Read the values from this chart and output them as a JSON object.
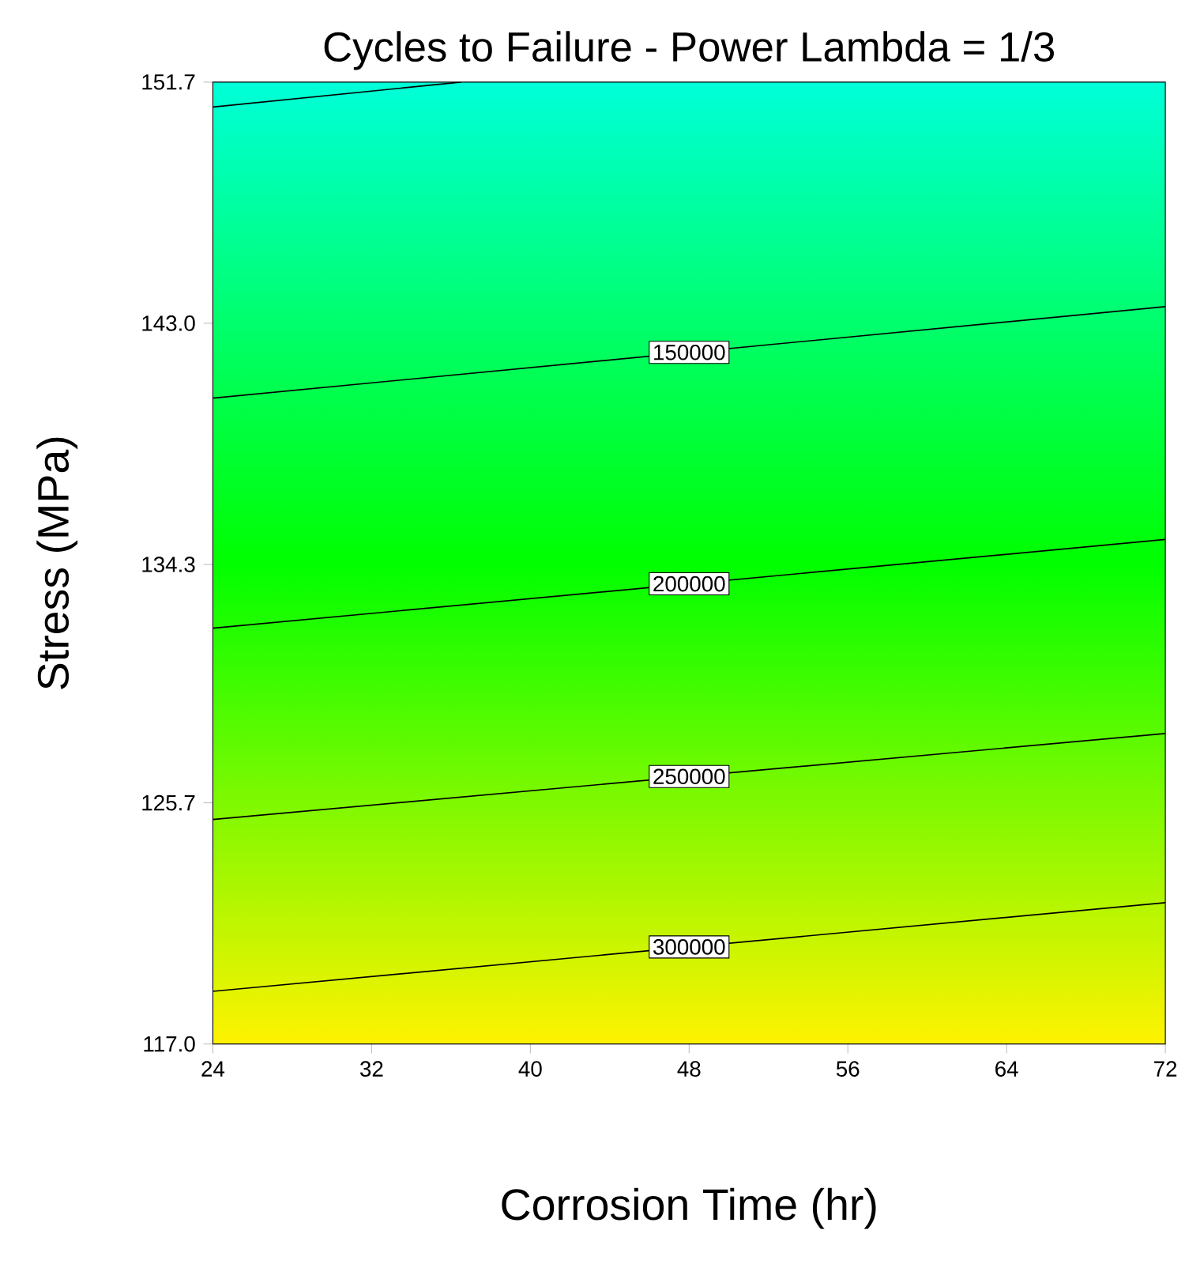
{
  "chart_data": {
    "type": "line",
    "title": "Cycles to Failure - Power Lambda = 1/3",
    "xlabel": "Corrosion Time (hr)",
    "ylabel": "Stress (MPa)",
    "xlim": [
      24,
      72
    ],
    "ylim": [
      117.0,
      151.7
    ],
    "xticks": [
      24,
      32,
      40,
      48,
      56,
      64,
      72
    ],
    "yticks": [
      {
        "value": 117.0,
        "label": "117.0"
      },
      {
        "value": 125.7,
        "label": "125.7"
      },
      {
        "value": 134.3,
        "label": "134.3"
      },
      {
        "value": 143.0,
        "label": "143.0"
      },
      {
        "value": 151.7,
        "label": "151.7"
      }
    ],
    "marker": "none",
    "line_style": "solid",
    "series": [
      {
        "color": "#000000",
        "x": [
          24,
          36.5
        ],
        "values": [
          150.8,
          151.7
        ]
      },
      {
        "name": "150000",
        "color": "#000000",
        "x": [
          24,
          72
        ],
        "values": [
          140.3,
          143.6
        ]
      },
      {
        "name": "200000",
        "color": "#000000",
        "x": [
          24,
          72
        ],
        "values": [
          132.0,
          135.2
        ]
      },
      {
        "name": "250000",
        "color": "#000000",
        "x": [
          24,
          72
        ],
        "values": [
          125.1,
          128.2
        ]
      },
      {
        "name": "300000",
        "color": "#000000",
        "x": [
          24,
          72
        ],
        "values": [
          118.9,
          122.1
        ]
      }
    ]
  }
}
